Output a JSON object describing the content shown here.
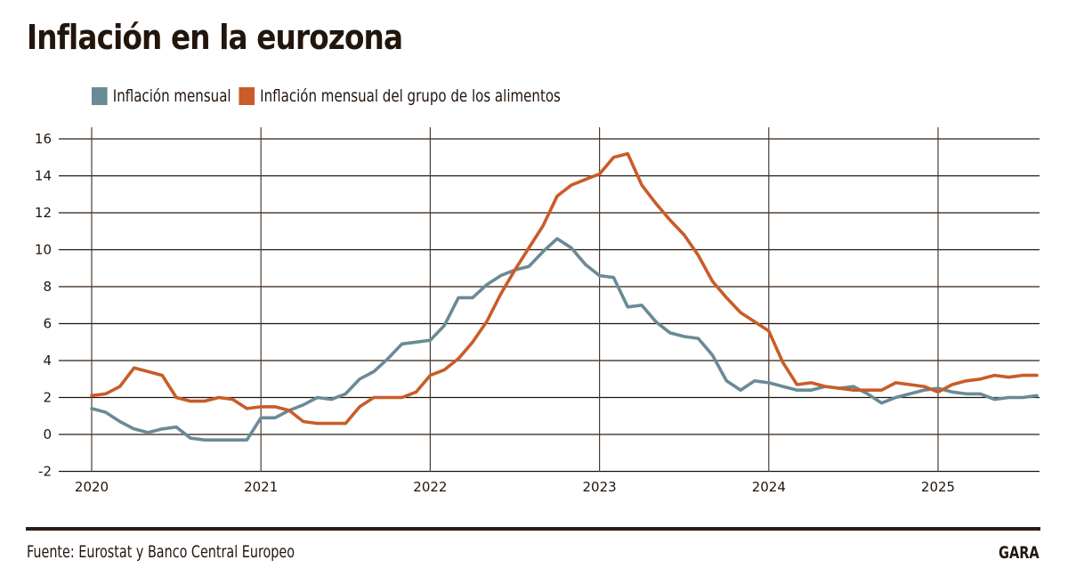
{
  "chart_data": {
    "type": "line",
    "title": "Inflación en la eurozona",
    "xlabel": "",
    "ylabel": "",
    "ylim": [
      -2,
      16
    ],
    "yticks": [
      -2,
      0,
      2,
      4,
      6,
      8,
      10,
      12,
      14,
      16
    ],
    "xticks": [
      "2020",
      "2021",
      "2022",
      "2023",
      "2024",
      "2025"
    ],
    "x_start": "2020-01",
    "x_frequency": "monthly",
    "grid": true,
    "legend_position": "top-left",
    "series": [
      {
        "name": "Inflación mensual",
        "color": "#6a8a96",
        "values": [
          1.4,
          1.2,
          0.7,
          0.3,
          0.1,
          0.3,
          0.4,
          -0.2,
          -0.3,
          -0.3,
          -0.3,
          -0.3,
          0.9,
          0.9,
          1.3,
          1.6,
          2.0,
          1.9,
          2.2,
          3.0,
          3.4,
          4.1,
          4.9,
          5.0,
          5.1,
          5.9,
          7.4,
          7.4,
          8.1,
          8.6,
          8.9,
          9.1,
          9.9,
          10.6,
          10.1,
          9.2,
          8.6,
          8.5,
          6.9,
          7.0,
          6.1,
          5.5,
          5.3,
          5.2,
          4.3,
          2.9,
          2.4,
          2.9,
          2.8,
          2.6,
          2.4,
          2.4,
          2.6,
          2.5,
          2.6,
          2.2,
          1.7,
          2.0,
          2.2,
          2.4,
          2.5,
          2.3,
          2.2,
          2.2,
          1.9,
          2.0,
          2.0,
          2.1
        ]
      },
      {
        "name": "Inflación mensual del grupo de los alimentos",
        "color": "#c95c28",
        "values": [
          2.1,
          2.2,
          2.6,
          3.6,
          3.4,
          3.2,
          2.0,
          1.8,
          1.8,
          2.0,
          1.9,
          1.4,
          1.5,
          1.5,
          1.3,
          0.7,
          0.6,
          0.6,
          0.6,
          1.5,
          2.0,
          2.0,
          2.0,
          2.3,
          3.2,
          3.5,
          4.1,
          5.0,
          6.1,
          7.6,
          8.9,
          10.1,
          11.3,
          12.9,
          13.5,
          13.8,
          14.1,
          15.0,
          15.2,
          13.5,
          12.5,
          11.6,
          10.8,
          9.7,
          8.3,
          7.4,
          6.6,
          6.1,
          5.6,
          3.9,
          2.7,
          2.8,
          2.6,
          2.5,
          2.4,
          2.4,
          2.4,
          2.8,
          2.7,
          2.6,
          2.3,
          2.7,
          2.9,
          3.0,
          3.2,
          3.1,
          3.2,
          3.2
        ]
      }
    ]
  },
  "header": {
    "title": "Inflación en la eurozona"
  },
  "legend": [
    {
      "label": "Inflación mensual",
      "color": "#6a8a96"
    },
    {
      "label": "Inflación mensual del grupo de los alimentos",
      "color": "#c95c28"
    }
  ],
  "footer": {
    "source": "Fuente: Eurostat y Banco Central Europeo",
    "brand": "GARA"
  }
}
